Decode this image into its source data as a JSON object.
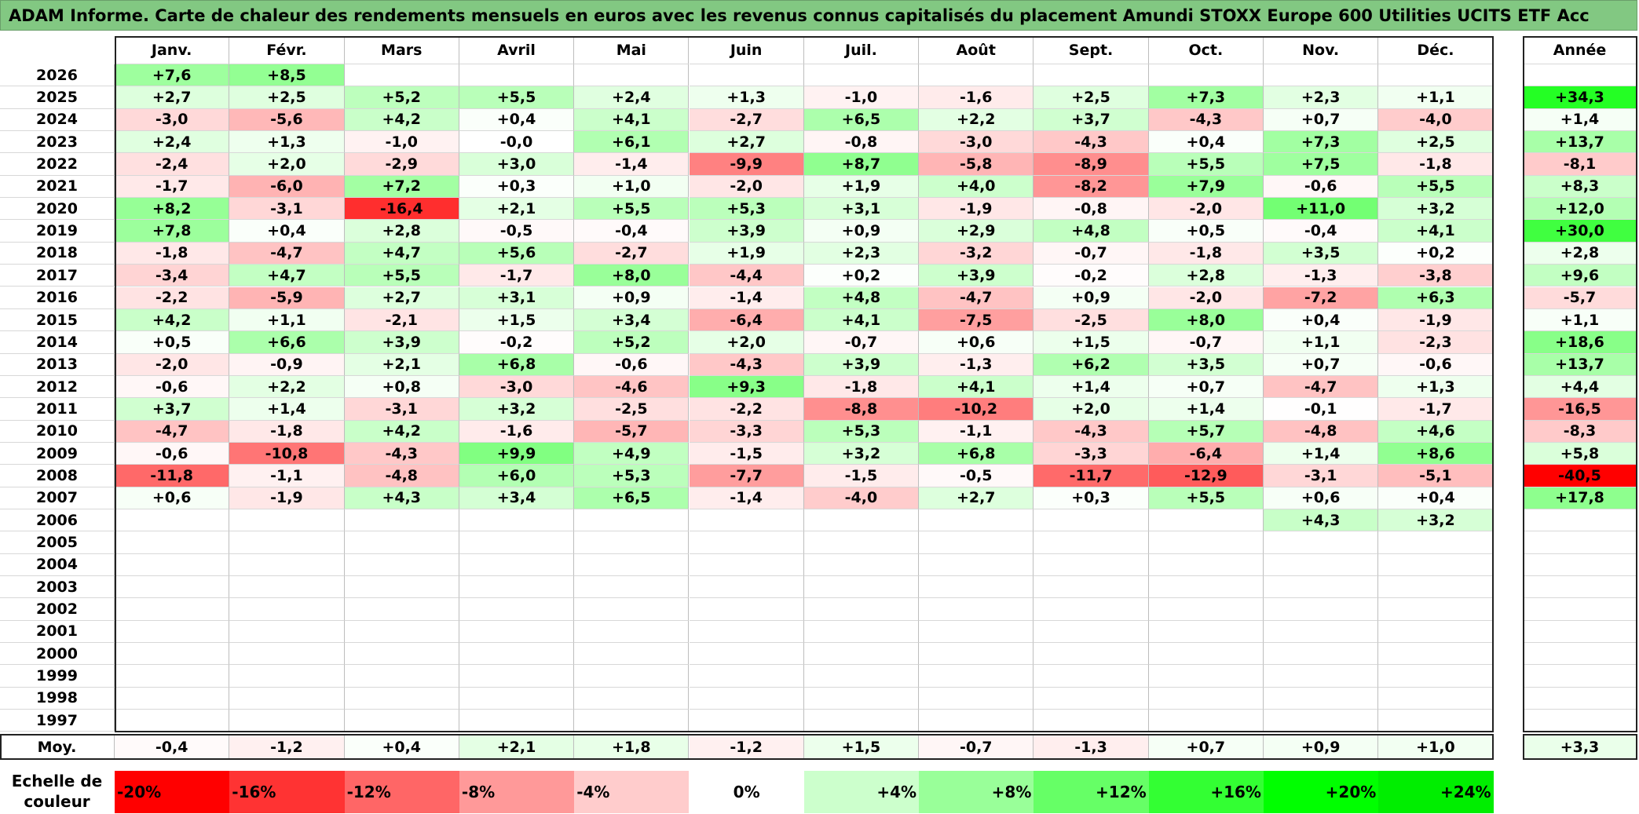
{
  "title": "ADAM Informe. Carte de chaleur des rendements mensuels en euros avec les revenus connus capitalisés du placement Amundi STOXX Europe 600 Utilities UCITS ETF Acc",
  "chart_data": {
    "type": "heatmap",
    "months": [
      "Janv.",
      "Févr.",
      "Mars",
      "Avril",
      "Mai",
      "Juin",
      "Juil.",
      "Août",
      "Sept.",
      "Oct.",
      "Nov.",
      "Déc."
    ],
    "year_header": "Année",
    "avg_label": "Moy.",
    "scale_label": "Echelle de couleur",
    "rows": [
      {
        "year": "2026",
        "months": [
          "+7,6",
          "+8,5",
          "",
          "",
          "",
          "",
          "",
          "",
          "",
          "",
          "",
          ""
        ],
        "annual": ""
      },
      {
        "year": "2025",
        "months": [
          "+2,7",
          "+2,5",
          "+5,2",
          "+5,5",
          "+2,4",
          "+1,3",
          "-1,0",
          "-1,6",
          "+2,5",
          "+7,3",
          "+2,3",
          "+1,1"
        ],
        "annual": "+34,3"
      },
      {
        "year": "2024",
        "months": [
          "-3,0",
          "-5,6",
          "+4,2",
          "+0,4",
          "+4,1",
          "-2,7",
          "+6,5",
          "+2,2",
          "+3,7",
          "-4,3",
          "+0,7",
          "-4,0"
        ],
        "annual": "+1,4"
      },
      {
        "year": "2023",
        "months": [
          "+2,4",
          "+1,3",
          "-1,0",
          "-0,0",
          "+6,1",
          "+2,7",
          "-0,8",
          "-3,0",
          "-4,3",
          "+0,4",
          "+7,3",
          "+2,5"
        ],
        "annual": "+13,7"
      },
      {
        "year": "2022",
        "months": [
          "-2,4",
          "+2,0",
          "-2,9",
          "+3,0",
          "-1,4",
          "-9,9",
          "+8,7",
          "-5,8",
          "-8,9",
          "+5,5",
          "+7,5",
          "-1,8"
        ],
        "annual": "-8,1"
      },
      {
        "year": "2021",
        "months": [
          "-1,7",
          "-6,0",
          "+7,2",
          "+0,3",
          "+1,0",
          "-2,0",
          "+1,9",
          "+4,0",
          "-8,2",
          "+7,9",
          "-0,6",
          "+5,5"
        ],
        "annual": "+8,3"
      },
      {
        "year": "2020",
        "months": [
          "+8,2",
          "-3,1",
          "-16,4",
          "+2,1",
          "+5,5",
          "+5,3",
          "+3,1",
          "-1,9",
          "-0,8",
          "-2,0",
          "+11,0",
          "+3,2"
        ],
        "annual": "+12,0"
      },
      {
        "year": "2019",
        "months": [
          "+7,8",
          "+0,4",
          "+2,8",
          "-0,5",
          "-0,4",
          "+3,9",
          "+0,9",
          "+2,9",
          "+4,8",
          "+0,5",
          "-0,4",
          "+4,1"
        ],
        "annual": "+30,0"
      },
      {
        "year": "2018",
        "months": [
          "-1,8",
          "-4,7",
          "+4,7",
          "+5,6",
          "-2,7",
          "+1,9",
          "+2,3",
          "-3,2",
          "-0,7",
          "-1,8",
          "+3,5",
          "+0,2"
        ],
        "annual": "+2,8"
      },
      {
        "year": "2017",
        "months": [
          "-3,4",
          "+4,7",
          "+5,5",
          "-1,7",
          "+8,0",
          "-4,4",
          "+0,2",
          "+3,9",
          "-0,2",
          "+2,8",
          "-1,3",
          "-3,8"
        ],
        "annual": "+9,6"
      },
      {
        "year": "2016",
        "months": [
          "-2,2",
          "-5,9",
          "+2,7",
          "+3,1",
          "+0,9",
          "-1,4",
          "+4,8",
          "-4,7",
          "+0,9",
          "-2,0",
          "-7,2",
          "+6,3"
        ],
        "annual": "-5,7"
      },
      {
        "year": "2015",
        "months": [
          "+4,2",
          "+1,1",
          "-2,1",
          "+1,5",
          "+3,4",
          "-6,4",
          "+4,1",
          "-7,5",
          "-2,5",
          "+8,0",
          "+0,4",
          "-1,9"
        ],
        "annual": "+1,1"
      },
      {
        "year": "2014",
        "months": [
          "+0,5",
          "+6,6",
          "+3,9",
          "-0,2",
          "+5,2",
          "+2,0",
          "-0,7",
          "+0,6",
          "+1,5",
          "-0,7",
          "+1,1",
          "-2,3"
        ],
        "annual": "+18,6"
      },
      {
        "year": "2013",
        "months": [
          "-2,0",
          "-0,9",
          "+2,1",
          "+6,8",
          "-0,6",
          "-4,3",
          "+3,9",
          "-1,3",
          "+6,2",
          "+3,5",
          "+0,7",
          "-0,6"
        ],
        "annual": "+13,7"
      },
      {
        "year": "2012",
        "months": [
          "-0,6",
          "+2,2",
          "+0,8",
          "-3,0",
          "-4,6",
          "+9,3",
          "-1,8",
          "+4,1",
          "+1,4",
          "+0,7",
          "-4,7",
          "+1,3"
        ],
        "annual": "+4,4"
      },
      {
        "year": "2011",
        "months": [
          "+3,7",
          "+1,4",
          "-3,1",
          "+3,2",
          "-2,5",
          "-2,2",
          "-8,8",
          "-10,2",
          "+2,0",
          "+1,4",
          "-0,1",
          "-1,7"
        ],
        "annual": "-16,5"
      },
      {
        "year": "2010",
        "months": [
          "-4,7",
          "-1,8",
          "+4,2",
          "-1,6",
          "-5,7",
          "-3,3",
          "+5,3",
          "-1,1",
          "-4,3",
          "+5,7",
          "-4,8",
          "+4,6"
        ],
        "annual": "-8,3"
      },
      {
        "year": "2009",
        "months": [
          "-0,6",
          "-10,8",
          "-4,3",
          "+9,9",
          "+4,9",
          "-1,5",
          "+3,2",
          "+6,8",
          "-3,3",
          "-6,4",
          "+1,4",
          "+8,6"
        ],
        "annual": "+5,8"
      },
      {
        "year": "2008",
        "months": [
          "-11,8",
          "-1,1",
          "-4,8",
          "+6,0",
          "+5,3",
          "-7,7",
          "-1,5",
          "-0,5",
          "-11,7",
          "-12,9",
          "-3,1",
          "-5,1"
        ],
        "annual": "-40,5"
      },
      {
        "year": "2007",
        "months": [
          "+0,6",
          "-1,9",
          "+4,3",
          "+3,4",
          "+6,5",
          "-1,4",
          "-4,0",
          "+2,7",
          "+0,3",
          "+5,5",
          "+0,6",
          "+0,4"
        ],
        "annual": "+17,8"
      },
      {
        "year": "2006",
        "months": [
          "",
          "",
          "",
          "",
          "",
          "",
          "",
          "",
          "",
          "",
          "+4,3",
          "+3,2"
        ],
        "annual": ""
      },
      {
        "year": "2005",
        "months": [
          "",
          "",
          "",
          "",
          "",
          "",
          "",
          "",
          "",
          "",
          "",
          ""
        ],
        "annual": ""
      },
      {
        "year": "2004",
        "months": [
          "",
          "",
          "",
          "",
          "",
          "",
          "",
          "",
          "",
          "",
          "",
          ""
        ],
        "annual": ""
      },
      {
        "year": "2003",
        "months": [
          "",
          "",
          "",
          "",
          "",
          "",
          "",
          "",
          "",
          "",
          "",
          ""
        ],
        "annual": ""
      },
      {
        "year": "2002",
        "months": [
          "",
          "",
          "",
          "",
          "",
          "",
          "",
          "",
          "",
          "",
          "",
          ""
        ],
        "annual": ""
      },
      {
        "year": "2001",
        "months": [
          "",
          "",
          "",
          "",
          "",
          "",
          "",
          "",
          "",
          "",
          "",
          ""
        ],
        "annual": ""
      },
      {
        "year": "2000",
        "months": [
          "",
          "",
          "",
          "",
          "",
          "",
          "",
          "",
          "",
          "",
          "",
          ""
        ],
        "annual": ""
      },
      {
        "year": "1999",
        "months": [
          "",
          "",
          "",
          "",
          "",
          "",
          "",
          "",
          "",
          "",
          "",
          ""
        ],
        "annual": ""
      },
      {
        "year": "1998",
        "months": [
          "",
          "",
          "",
          "",
          "",
          "",
          "",
          "",
          "",
          "",
          "",
          ""
        ],
        "annual": ""
      },
      {
        "year": "1997",
        "months": [
          "",
          "",
          "",
          "",
          "",
          "",
          "",
          "",
          "",
          "",
          "",
          ""
        ],
        "annual": ""
      }
    ],
    "averages": {
      "months": [
        "-0,4",
        "-1,2",
        "+0,4",
        "+2,1",
        "+1,8",
        "-1,2",
        "+1,5",
        "-0,7",
        "-1,3",
        "+0,7",
        "+0,9",
        "+1,0"
      ],
      "annual": "+3,3"
    },
    "scale": [
      {
        "label": "-20%",
        "value": -20,
        "color": "#ff0000"
      },
      {
        "label": "-16%",
        "value": -16,
        "color": "#ff3333"
      },
      {
        "label": "-12%",
        "value": -12,
        "color": "#ff6666"
      },
      {
        "label": "-8%",
        "value": -8,
        "color": "#ff9999"
      },
      {
        "label": "-4%",
        "value": -4,
        "color": "#ffcccc"
      },
      {
        "label": "0%",
        "value": 0,
        "color": "#ffffff"
      },
      {
        "label": "+4%",
        "value": 4,
        "color": "#ccffcc"
      },
      {
        "label": "+8%",
        "value": 8,
        "color": "#99ff99"
      },
      {
        "label": "+12%",
        "value": 12,
        "color": "#66ff66"
      },
      {
        "label": "+16%",
        "value": 16,
        "color": "#33ff33"
      },
      {
        "label": "+20%",
        "value": 20,
        "color": "#00ff00"
      },
      {
        "label": "+24%",
        "value": 24,
        "color": "#00ee00"
      }
    ],
    "colors": {
      "negative": "#ff0000",
      "positive": "#00ff00",
      "neutral": "#ffffff",
      "title_bg": "#82c882"
    }
  }
}
